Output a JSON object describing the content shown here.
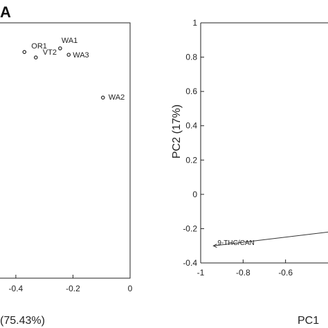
{
  "panel_label": "A",
  "chart_data": [
    {
      "type": "scatter",
      "title": "",
      "xlabel": "(75.43%)",
      "ylabel": "",
      "xlim": [
        -0.47,
        0.0
      ],
      "ylim": [
        -0.4,
        1.0
      ],
      "x_ticks": [
        -0.4,
        -0.2,
        0
      ],
      "x_tick_labels": [
        "-0.4",
        "-0.2",
        "0"
      ],
      "grid": false,
      "points": [
        {
          "label": "WA1",
          "x": -0.245,
          "y": 0.86
        },
        {
          "label": "OR1",
          "x": -0.37,
          "y": 0.84
        },
        {
          "label": "VT2",
          "x": -0.33,
          "y": 0.81
        },
        {
          "label": "WA3",
          "x": -0.215,
          "y": 0.825
        },
        {
          "label": "WA2",
          "x": -0.095,
          "y": 0.59
        }
      ]
    },
    {
      "type": "line",
      "title": "",
      "xlabel": "PC1",
      "ylabel": "PC2 (17%)",
      "xlim": [
        -1,
        -0.4
      ],
      "ylim": [
        -0.4,
        1.0
      ],
      "x_ticks": [
        -1,
        -0.8,
        -0.6
      ],
      "x_tick_labels": [
        "-1",
        "-0.8",
        "-0.6"
      ],
      "y_ticks": [
        -0.4,
        -0.2,
        0,
        0.2,
        0.4,
        0.6,
        0.8,
        1
      ],
      "y_tick_labels": [
        "-0.4",
        "-0.2",
        "0",
        "0.2",
        "0.4",
        "0.6",
        "0.8",
        "1"
      ],
      "grid": false,
      "vectors": [
        {
          "label": "9-THC/CAN",
          "x0": -0.35,
          "y0": -0.22,
          "x1": -0.94,
          "y1": -0.3
        }
      ]
    }
  ]
}
